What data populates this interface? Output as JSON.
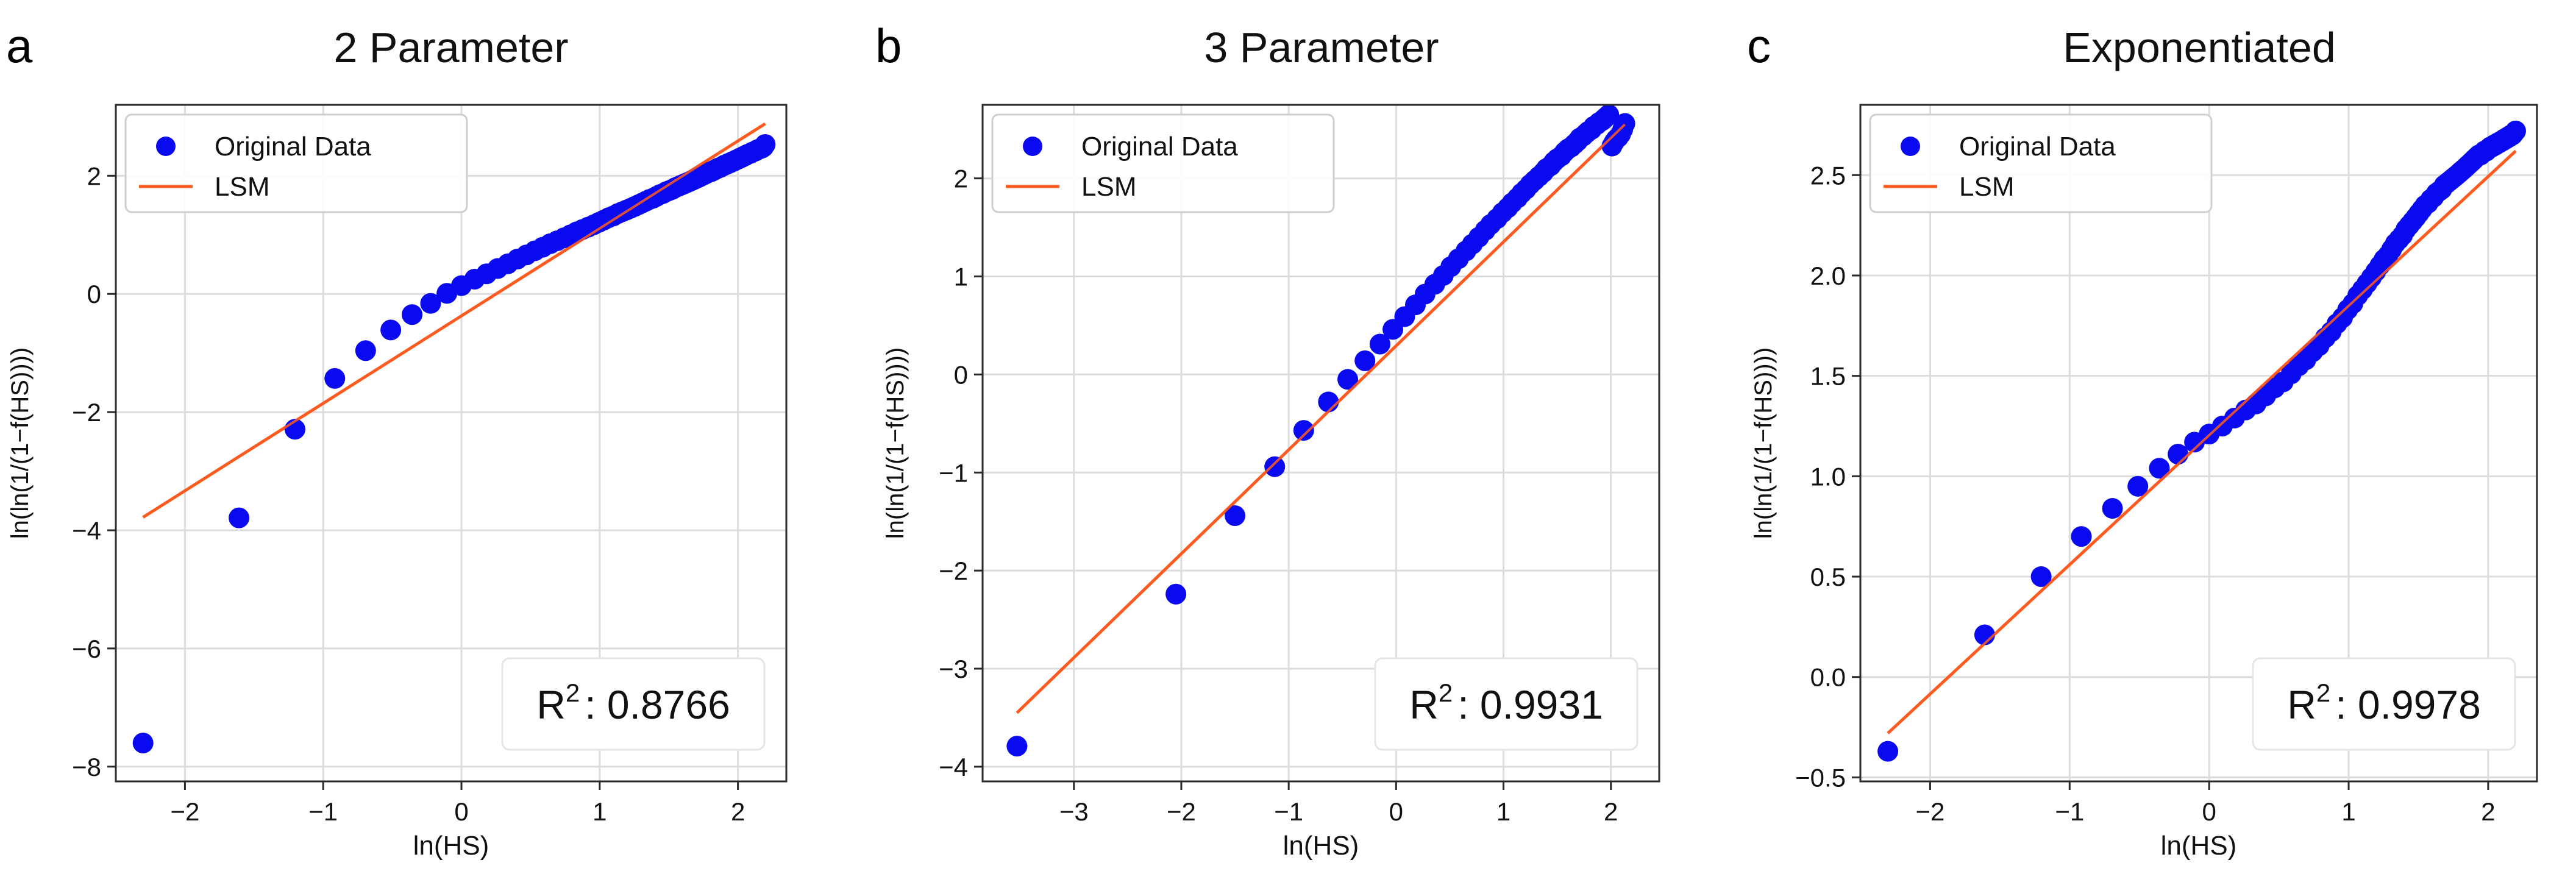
{
  "colors": {
    "data_points": "#0a0af0",
    "fit_line": "#ff5a1f",
    "grid": "#dcdcdc",
    "frame": "#2a2a2a",
    "text": "#111111"
  },
  "chart_data": [
    {
      "panel": "a",
      "type": "scatter",
      "title": "2 Parameter",
      "xlabel": "ln(HS)",
      "ylabel": "ln(ln(1/(1−f(HS))))",
      "xlim": [
        -2.5,
        2.35
      ],
      "ylim": [
        -8.25,
        3.2
      ],
      "xticks": [
        -2,
        -1,
        0,
        1,
        2
      ],
      "yticks": [
        -8,
        -6,
        -4,
        -2,
        0,
        2
      ],
      "grid": true,
      "legend_position": "top-left",
      "r2_label": "R",
      "r2_sup": "2",
      "r2_value": ": 0.8766",
      "series": [
        {
          "name": "Original Data",
          "kind": "points",
          "x": [
            -2.303,
            -1.609,
            -1.204,
            -0.916,
            -0.693,
            -0.511,
            -0.357,
            -0.223,
            -0.105,
            0.0,
            0.095,
            0.182,
            0.262,
            0.336,
            0.405,
            0.47,
            0.531,
            0.588,
            0.642,
            0.693,
            0.742,
            0.788,
            0.833,
            0.875,
            0.916,
            0.956,
            0.993,
            1.03,
            1.065,
            1.099,
            1.131,
            1.163,
            1.194,
            1.224,
            1.253,
            1.281,
            1.308,
            1.335,
            1.361,
            1.386,
            1.411,
            1.435,
            1.459,
            1.482,
            1.504,
            1.526,
            1.548,
            1.569,
            1.589,
            1.609,
            1.629,
            1.649,
            1.668,
            1.686,
            1.705,
            1.723,
            1.74,
            1.758,
            1.775,
            1.792,
            1.808,
            1.825,
            1.841,
            1.856,
            1.872,
            1.887,
            1.902,
            1.917,
            1.932,
            1.946,
            1.96,
            1.974,
            1.988,
            2.001,
            2.015,
            2.028,
            2.041,
            2.054,
            2.067,
            2.079,
            2.092,
            2.104,
            2.116,
            2.128,
            2.14,
            2.152,
            2.163,
            2.175,
            2.186,
            2.197
          ],
          "y": [
            -7.6,
            -3.79,
            -2.29,
            -1.43,
            -0.96,
            -0.61,
            -0.35,
            -0.16,
            0.01,
            0.14,
            0.25,
            0.34,
            0.43,
            0.51,
            0.59,
            0.66,
            0.73,
            0.79,
            0.85,
            0.9,
            0.95,
            1.0,
            1.05,
            1.09,
            1.13,
            1.17,
            1.21,
            1.25,
            1.29,
            1.32,
            1.36,
            1.39,
            1.42,
            1.45,
            1.48,
            1.51,
            1.54,
            1.57,
            1.6,
            1.62,
            1.65,
            1.68,
            1.7,
            1.73,
            1.75,
            1.77,
            1.8,
            1.82,
            1.84,
            1.86,
            1.88,
            1.9,
            1.92,
            1.94,
            1.96,
            1.98,
            2.0,
            2.02,
            2.04,
            2.06,
            2.07,
            2.09,
            2.11,
            2.13,
            2.14,
            2.16,
            2.18,
            2.19,
            2.21,
            2.22,
            2.24,
            2.25,
            2.27,
            2.28,
            2.3,
            2.31,
            2.33,
            2.34,
            2.36,
            2.37,
            2.38,
            2.4,
            2.41,
            2.42,
            2.44,
            2.45,
            2.46,
            2.47,
            2.49,
            2.53
          ]
        },
        {
          "name": "LSM",
          "kind": "line",
          "x": [
            -2.303,
            2.197
          ],
          "y": [
            -3.78,
            2.88
          ]
        }
      ]
    },
    {
      "panel": "b",
      "type": "scatter",
      "title": "3 Parameter",
      "xlabel": "ln(HS)",
      "ylabel": "ln(ln(1/(1−f(HS))))",
      "xlim": [
        -3.85,
        2.45
      ],
      "ylim": [
        -4.15,
        2.75
      ],
      "xticks": [
        -3,
        -2,
        -1,
        0,
        1,
        2
      ],
      "yticks": [
        -4,
        -3,
        -2,
        -1,
        0,
        1,
        2
      ],
      "grid": true,
      "legend_position": "top-left",
      "r2_label": "R",
      "r2_sup": "2",
      "r2_value": ": 0.9931",
      "series": [
        {
          "name": "Original Data",
          "kind": "points",
          "x": [
            -3.53,
            -2.05,
            -1.5,
            -1.13,
            -0.86,
            -0.63,
            -0.45,
            -0.29,
            -0.15,
            -0.03,
            0.08,
            0.18,
            0.27,
            0.36,
            0.44,
            0.51,
            0.58,
            0.65,
            0.71,
            0.77,
            0.83,
            0.88,
            0.94,
            0.99,
            1.04,
            1.08,
            1.13,
            1.17,
            1.21,
            1.25,
            1.29,
            1.33,
            1.37,
            1.4,
            1.44,
            1.47,
            1.5,
            1.54,
            1.57,
            1.6,
            1.63,
            1.66,
            1.69,
            1.71,
            1.74,
            1.77,
            1.79,
            1.82,
            1.84,
            1.87,
            1.89,
            1.92,
            1.94,
            1.96,
            1.98,
            2.01,
            2.03,
            2.05,
            2.07,
            2.09,
            2.11,
            2.13
          ],
          "y": [
            -3.79,
            -2.24,
            -1.44,
            -0.94,
            -0.57,
            -0.28,
            -0.05,
            0.14,
            0.31,
            0.46,
            0.59,
            0.71,
            0.82,
            0.92,
            1.01,
            1.1,
            1.18,
            1.26,
            1.33,
            1.4,
            1.47,
            1.53,
            1.59,
            1.65,
            1.7,
            1.75,
            1.8,
            1.85,
            1.89,
            1.94,
            1.98,
            2.02,
            2.06,
            2.1,
            2.13,
            2.17,
            2.2,
            2.23,
            2.27,
            2.3,
            2.32,
            2.35,
            2.38,
            2.41,
            2.43,
            2.46,
            2.48,
            2.5,
            2.53,
            2.55,
            2.57,
            2.59,
            2.61,
            2.63,
            2.65,
            2.33,
            2.37,
            2.4,
            2.42,
            2.45,
            2.5,
            2.56
          ]
        },
        {
          "name": "LSM",
          "kind": "line",
          "x": [
            -3.53,
            2.13
          ],
          "y": [
            -3.45,
            2.55
          ]
        }
      ]
    },
    {
      "panel": "c",
      "type": "scatter",
      "title": "Exponentiated",
      "xlabel": "ln(HS)",
      "ylabel": "ln(ln(1/(1−f(HS))))",
      "xlim": [
        -2.5,
        2.35
      ],
      "ylim": [
        -0.52,
        2.85
      ],
      "xticks": [
        -2,
        -1,
        0,
        1,
        2
      ],
      "yticks": [
        -0.5,
        0.0,
        0.5,
        1.0,
        1.5,
        2.0,
        2.5
      ],
      "grid": true,
      "legend_position": "top-left",
      "r2_label": "R",
      "r2_sup": "2",
      "r2_value": ": 0.9978",
      "series": [
        {
          "name": "Original Data",
          "kind": "points",
          "x": [
            -2.303,
            -1.609,
            -1.204,
            -0.916,
            -0.693,
            -0.511,
            -0.357,
            -0.223,
            -0.105,
            0.0,
            0.095,
            0.182,
            0.262,
            0.336,
            0.405,
            0.47,
            0.531,
            0.588,
            0.642,
            0.693,
            0.742,
            0.788,
            0.833,
            0.875,
            0.916,
            0.956,
            0.993,
            1.03,
            1.065,
            1.099,
            1.131,
            1.163,
            1.194,
            1.224,
            1.253,
            1.281,
            1.308,
            1.335,
            1.361,
            1.386,
            1.411,
            1.435,
            1.459,
            1.482,
            1.504,
            1.526,
            1.548,
            1.569,
            1.589,
            1.609,
            1.629,
            1.649,
            1.668,
            1.686,
            1.705,
            1.723,
            1.74,
            1.758,
            1.775,
            1.792,
            1.808,
            1.825,
            1.841,
            1.856,
            1.872,
            1.887,
            1.902,
            1.917,
            1.932,
            1.946,
            1.96,
            1.974,
            1.988,
            2.001,
            2.015,
            2.028,
            2.041,
            2.054,
            2.067,
            2.079,
            2.092,
            2.104,
            2.116,
            2.128,
            2.14,
            2.152,
            2.163,
            2.175,
            2.186,
            2.197
          ],
          "y": [
            -0.37,
            0.21,
            0.5,
            0.7,
            0.84,
            0.95,
            1.04,
            1.11,
            1.17,
            1.21,
            1.25,
            1.29,
            1.33,
            1.36,
            1.4,
            1.44,
            1.47,
            1.51,
            1.55,
            1.58,
            1.62,
            1.65,
            1.69,
            1.72,
            1.76,
            1.79,
            1.83,
            1.86,
            1.9,
            1.93,
            1.96,
            1.99,
            2.02,
            2.05,
            2.08,
            2.1,
            2.13,
            2.16,
            2.18,
            2.2,
            2.23,
            2.25,
            2.27,
            2.29,
            2.31,
            2.33,
            2.35,
            2.36,
            2.38,
            2.39,
            2.41,
            2.42,
            2.43,
            2.45,
            2.46,
            2.47,
            2.48,
            2.49,
            2.5,
            2.51,
            2.52,
            2.53,
            2.54,
            2.55,
            2.56,
            2.57,
            2.58,
            2.59,
            2.6,
            2.6,
            2.61,
            2.62,
            2.62,
            2.63,
            2.64,
            2.64,
            2.65,
            2.65,
            2.66,
            2.66,
            2.67,
            2.67,
            2.68,
            2.68,
            2.69,
            2.69,
            2.7,
            2.7,
            2.71,
            2.72
          ]
        },
        {
          "name": "LSM",
          "kind": "line",
          "x": [
            -2.303,
            2.197
          ],
          "y": [
            -0.28,
            2.62
          ]
        }
      ]
    }
  ]
}
